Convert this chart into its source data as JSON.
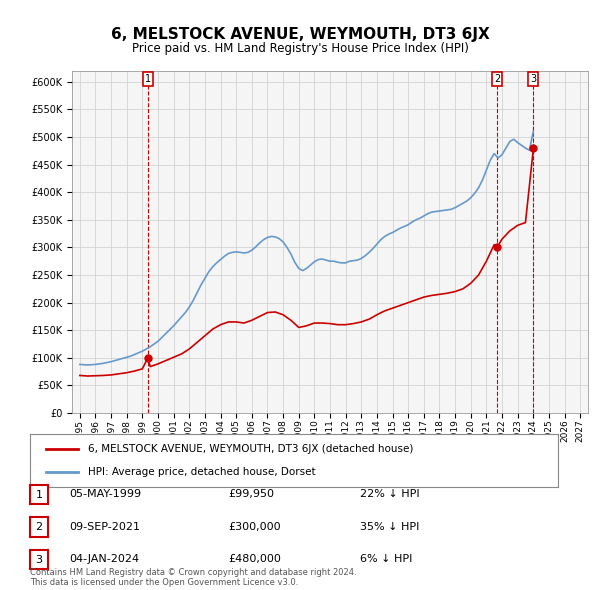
{
  "title": "6, MELSTOCK AVENUE, WEYMOUTH, DT3 6JX",
  "subtitle": "Price paid vs. HM Land Registry's House Price Index (HPI)",
  "footer": "Contains HM Land Registry data © Crown copyright and database right 2024.\nThis data is licensed under the Open Government Licence v3.0.",
  "legend_line1": "6, MELSTOCK AVENUE, WEYMOUTH, DT3 6JX (detached house)",
  "legend_line2": "HPI: Average price, detached house, Dorset",
  "red_color": "#cc0000",
  "blue_color": "#6699cc",
  "background_color": "#f5f5f5",
  "grid_color": "#cccccc",
  "ylim": [
    0,
    620000
  ],
  "yticks": [
    0,
    50000,
    100000,
    150000,
    200000,
    250000,
    300000,
    350000,
    400000,
    450000,
    500000,
    550000,
    600000
  ],
  "xlim_start": 1994.5,
  "xlim_end": 2027.5,
  "transactions": [
    {
      "num": 1,
      "date": "05-MAY-1999",
      "price": 99950,
      "hpi_rel": "22% ↓ HPI",
      "year": 1999.35
    },
    {
      "num": 2,
      "date": "09-SEP-2021",
      "price": 300000,
      "hpi_rel": "35% ↓ HPI",
      "year": 2021.68
    },
    {
      "num": 3,
      "date": "04-JAN-2024",
      "price": 480000,
      "hpi_rel": "6% ↓ HPI",
      "year": 2024.01
    }
  ],
  "hpi_data": {
    "years": [
      1995.0,
      1995.25,
      1995.5,
      1995.75,
      1996.0,
      1996.25,
      1996.5,
      1996.75,
      1997.0,
      1997.25,
      1997.5,
      1997.75,
      1998.0,
      1998.25,
      1998.5,
      1998.75,
      1999.0,
      1999.25,
      1999.5,
      1999.75,
      2000.0,
      2000.25,
      2000.5,
      2000.75,
      2001.0,
      2001.25,
      2001.5,
      2001.75,
      2002.0,
      2002.25,
      2002.5,
      2002.75,
      2003.0,
      2003.25,
      2003.5,
      2003.75,
      2004.0,
      2004.25,
      2004.5,
      2004.75,
      2005.0,
      2005.25,
      2005.5,
      2005.75,
      2006.0,
      2006.25,
      2006.5,
      2006.75,
      2007.0,
      2007.25,
      2007.5,
      2007.75,
      2008.0,
      2008.25,
      2008.5,
      2008.75,
      2009.0,
      2009.25,
      2009.5,
      2009.75,
      2010.0,
      2010.25,
      2010.5,
      2010.75,
      2011.0,
      2011.25,
      2011.5,
      2011.75,
      2012.0,
      2012.25,
      2012.5,
      2012.75,
      2013.0,
      2013.25,
      2013.5,
      2013.75,
      2014.0,
      2014.25,
      2014.5,
      2014.75,
      2015.0,
      2015.25,
      2015.5,
      2015.75,
      2016.0,
      2016.25,
      2016.5,
      2016.75,
      2017.0,
      2017.25,
      2017.5,
      2017.75,
      2018.0,
      2018.25,
      2018.5,
      2018.75,
      2019.0,
      2019.25,
      2019.5,
      2019.75,
      2020.0,
      2020.25,
      2020.5,
      2020.75,
      2021.0,
      2021.25,
      2021.5,
      2021.75,
      2022.0,
      2022.25,
      2022.5,
      2022.75,
      2023.0,
      2023.25,
      2023.5,
      2023.75,
      2024.0
    ],
    "values": [
      88000,
      87500,
      87000,
      87500,
      88000,
      89000,
      90000,
      91500,
      93000,
      95000,
      97000,
      99000,
      101000,
      103000,
      106000,
      109000,
      112000,
      116000,
      120000,
      125000,
      130000,
      137000,
      144000,
      151000,
      158000,
      166000,
      174000,
      182000,
      192000,
      204000,
      218000,
      232000,
      244000,
      256000,
      265000,
      272000,
      278000,
      284000,
      289000,
      291000,
      292000,
      291000,
      290000,
      291000,
      295000,
      301000,
      308000,
      314000,
      318000,
      320000,
      319000,
      316000,
      310000,
      300000,
      288000,
      273000,
      262000,
      258000,
      262000,
      268000,
      274000,
      278000,
      279000,
      277000,
      275000,
      275000,
      273000,
      272000,
      272000,
      275000,
      276000,
      277000,
      280000,
      285000,
      291000,
      298000,
      306000,
      314000,
      320000,
      324000,
      327000,
      331000,
      335000,
      338000,
      341000,
      346000,
      350000,
      353000,
      357000,
      361000,
      364000,
      365000,
      366000,
      367000,
      368000,
      369000,
      372000,
      376000,
      380000,
      384000,
      390000,
      398000,
      408000,
      422000,
      440000,
      458000,
      470000,
      462000,
      468000,
      480000,
      492000,
      496000,
      490000,
      485000,
      480000,
      476000,
      510000
    ]
  },
  "red_data": {
    "years": [
      1995.0,
      1995.5,
      1996.0,
      1996.5,
      1997.0,
      1997.5,
      1998.0,
      1998.5,
      1999.0,
      1999.35,
      1999.5,
      2000.0,
      2000.5,
      2001.0,
      2001.5,
      2002.0,
      2002.5,
      2003.0,
      2003.5,
      2004.0,
      2004.5,
      2005.0,
      2005.5,
      2006.0,
      2006.5,
      2007.0,
      2007.5,
      2008.0,
      2008.5,
      2009.0,
      2009.5,
      2010.0,
      2010.5,
      2011.0,
      2011.5,
      2012.0,
      2012.5,
      2013.0,
      2013.5,
      2014.0,
      2014.5,
      2015.0,
      2015.5,
      2016.0,
      2016.5,
      2017.0,
      2017.5,
      2018.0,
      2018.5,
      2019.0,
      2019.5,
      2020.0,
      2020.5,
      2021.0,
      2021.5,
      2021.68,
      2022.0,
      2022.5,
      2023.0,
      2023.5,
      2024.01
    ],
    "values": [
      68000,
      67000,
      67500,
      68000,
      69000,
      71000,
      73000,
      76000,
      80000,
      99950,
      84000,
      89000,
      95000,
      101000,
      107000,
      116000,
      128000,
      140000,
      152000,
      160000,
      165000,
      165000,
      163000,
      168000,
      175000,
      182000,
      183000,
      178000,
      168000,
      155000,
      158000,
      163000,
      163000,
      162000,
      160000,
      160000,
      162000,
      165000,
      170000,
      178000,
      185000,
      190000,
      195000,
      200000,
      205000,
      210000,
      213000,
      215000,
      217000,
      220000,
      225000,
      235000,
      250000,
      275000,
      305000,
      300000,
      315000,
      330000,
      340000,
      345000,
      480000
    ]
  }
}
